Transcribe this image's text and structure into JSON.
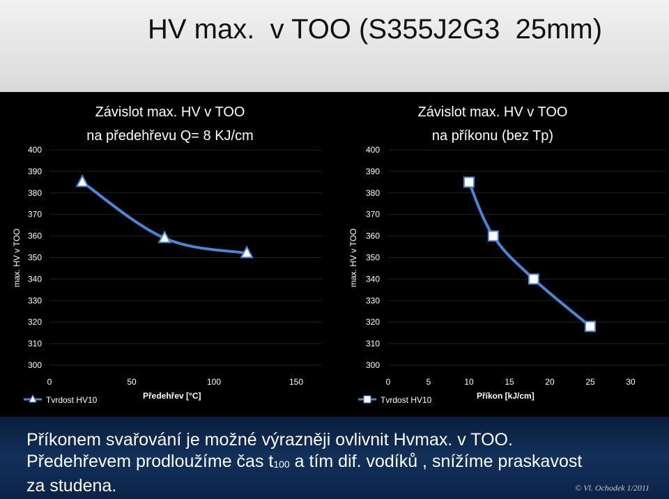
{
  "slide": {
    "title": "HV max.  v TOO (S355J2G3  25mm)",
    "note_line1": "Příkonem svařování  je  možné výrazněji ovlivnit Hvmax. v TOO.",
    "note_line2_a": "Předehřevem prodloužíme čas t",
    "note_line2_sub": "100",
    "note_line2_b": "  a tím dif. vodíků , snížíme praskavost",
    "note_line3": "za studena.",
    "credit": "© Vl. Ochodek  1/2011"
  },
  "chart_data": [
    {
      "type": "line",
      "title": [
        "Závislot max. HV v TOO",
        "na předehřevu Q= 8 KJ/cm"
      ],
      "xlabel": "Předehřev  [°C]",
      "ylabel": "max. HV v TOO",
      "xlim": [
        0,
        150
      ],
      "ylim": [
        300,
        400
      ],
      "xticks": [
        0,
        50,
        100,
        150
      ],
      "yticks": [
        300,
        310,
        320,
        330,
        340,
        350,
        360,
        370,
        380,
        390,
        400
      ],
      "grid": true,
      "legend": "bottom-left",
      "series": [
        {
          "name": "Tvrdost HV10",
          "marker": "triangle",
          "x": [
            20,
            70,
            120
          ],
          "y": [
            385,
            359,
            352
          ]
        }
      ]
    },
    {
      "type": "line",
      "title": [
        "Závislot max. HV v TOO",
        "na příkonu (bez Tp)"
      ],
      "xlabel": "Příkon   [kJ/cm]",
      "ylabel": "max. HV v TOO",
      "xlim": [
        0,
        30
      ],
      "ylim": [
        300,
        400
      ],
      "xticks": [
        0,
        5,
        10,
        15,
        20,
        25,
        30
      ],
      "yticks": [
        300,
        310,
        320,
        330,
        340,
        350,
        360,
        370,
        380,
        390,
        400
      ],
      "grid": true,
      "legend": "bottom-left",
      "series": [
        {
          "name": "Tvrdost HV10",
          "marker": "square",
          "x": [
            10,
            13,
            18,
            25
          ],
          "y": [
            385,
            360,
            340,
            318
          ]
        }
      ]
    }
  ],
  "colors": {
    "line": "#4a86d4",
    "marker_fill": "#ffffff",
    "text": "#ffffff",
    "grid": "#202020",
    "note_band": "#12305a"
  }
}
